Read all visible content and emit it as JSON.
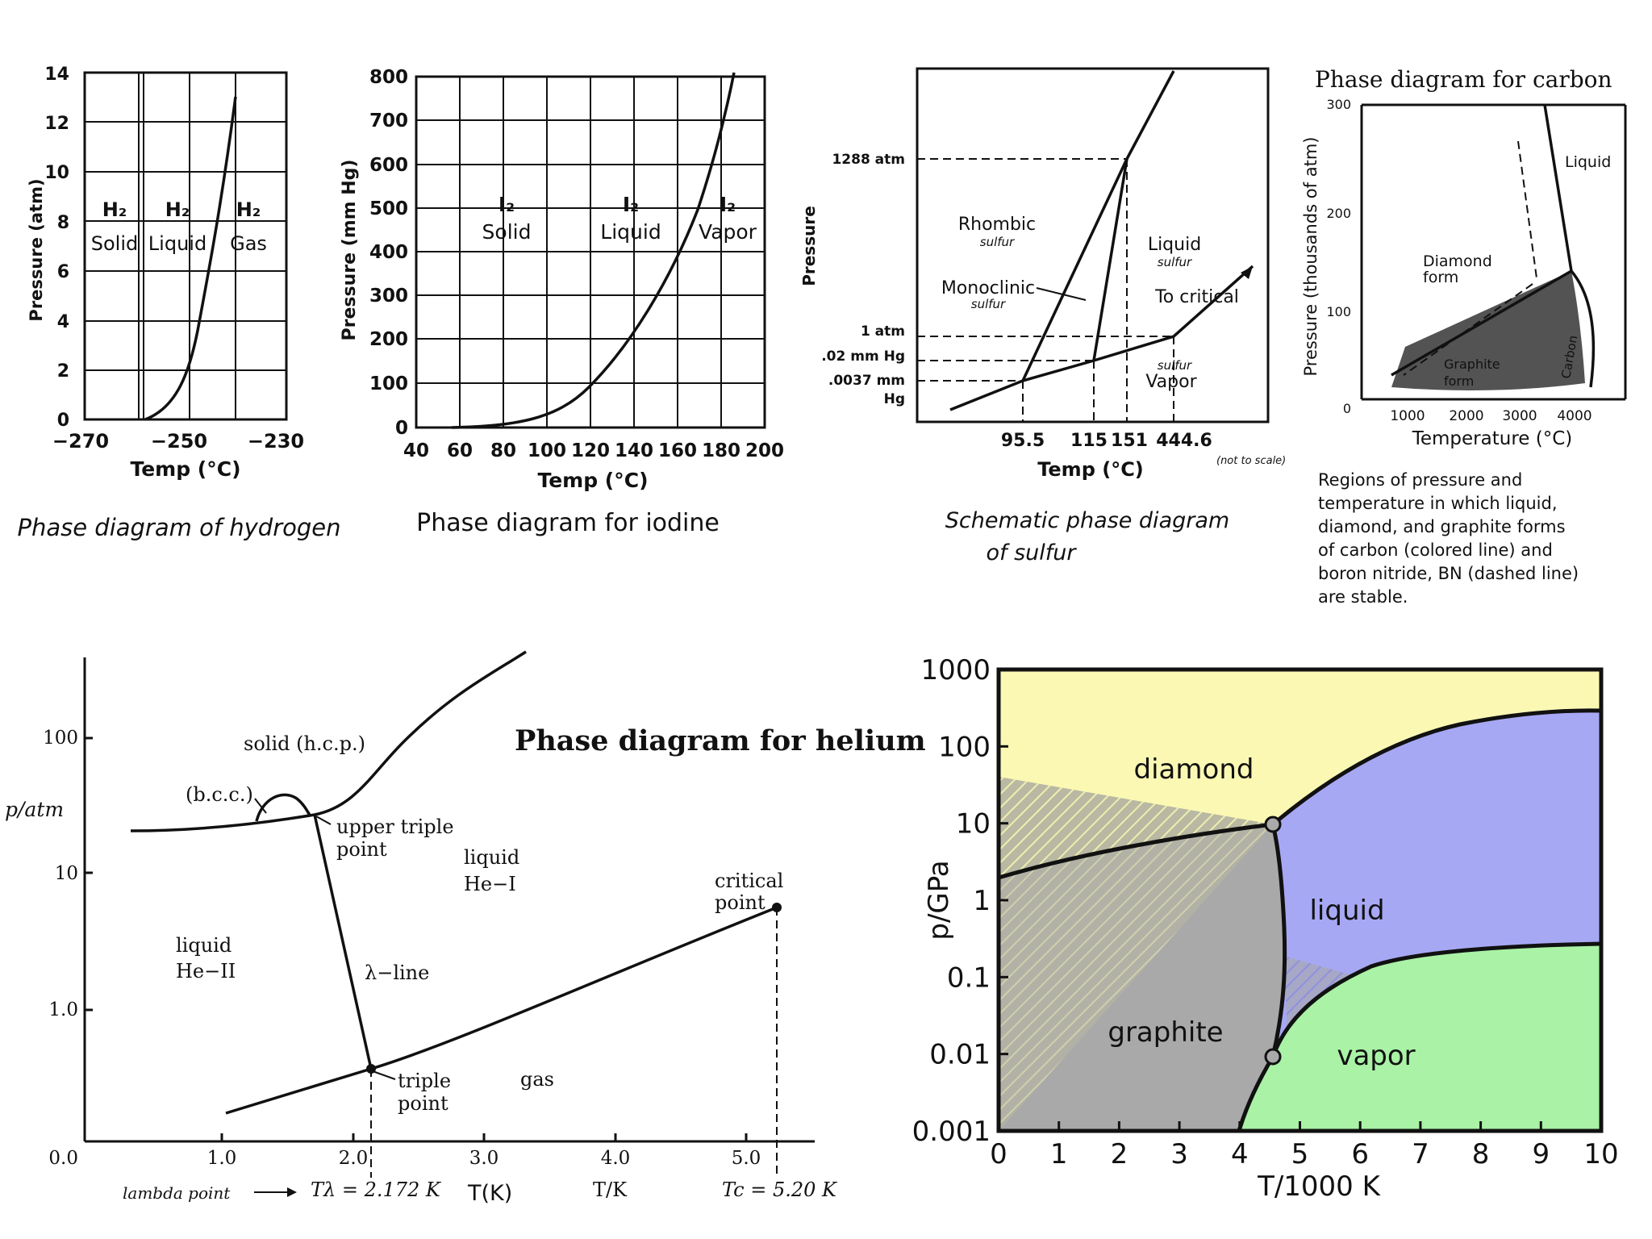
{
  "hydrogen": {
    "caption": "Phase diagram of hydrogen",
    "ylabel": "Pressure (atm)",
    "xlabel": "Temp (°C)",
    "yticks": [
      "0",
      "2",
      "4",
      "6",
      "8",
      "10",
      "12",
      "14"
    ],
    "xticks": [
      "−270",
      "−250",
      "−230"
    ],
    "labels": [
      {
        "id": "solid",
        "formula": "H₂",
        "phase": "Solid"
      },
      {
        "id": "liquid",
        "formula": "H₂",
        "phase": "Liquid"
      },
      {
        "id": "gas",
        "formula": "H₂",
        "phase": "Gas"
      }
    ]
  },
  "iodine": {
    "caption": "Phase diagram for iodine",
    "ylabel": "Pressure (mm Hg)",
    "xlabel": "Temp (°C)",
    "yticks": [
      "0",
      "100",
      "200",
      "300",
      "400",
      "500",
      "600",
      "700",
      "800"
    ],
    "xticks": [
      "40",
      "60",
      "80",
      "100",
      "120",
      "140",
      "160",
      "180",
      "200"
    ],
    "labels": [
      {
        "id": "solid",
        "formula": "I₂",
        "phase": "Solid"
      },
      {
        "id": "liquid",
        "formula": "I₂",
        "phase": "Liquid"
      },
      {
        "id": "vapor",
        "formula": "I₂",
        "phase": "Vapor"
      }
    ]
  },
  "sulfur": {
    "caption_line1": "Schematic phase diagram",
    "caption_line2": "of sulfur",
    "ylabel": "Pressure",
    "xlabel": "Temp (°C)",
    "not_to_scale": "(not to scale)",
    "pressure_marks": [
      "1288 atm",
      "1 atm",
      ".02 mm Hg",
      ".0037 mm",
      "Hg"
    ],
    "temp_marks": [
      "95.5",
      "115",
      "151",
      "444.6"
    ],
    "regions": {
      "rhombic": [
        "Rhombic",
        "sulfur"
      ],
      "monoclinic": [
        "Monoclinic",
        "sulfur"
      ],
      "liquid": [
        "Liquid",
        "sulfur"
      ],
      "to_critical": "To critical",
      "vapor": [
        "sulfur",
        "Vapor"
      ]
    }
  },
  "carbon": {
    "title": "Phase diagram for carbon",
    "ylabel": "Pressure (thousands of atm)",
    "xlabel": "Temperature (°C)",
    "yticks": [
      "0",
      "100",
      "200",
      "300"
    ],
    "xticks": [
      "1000",
      "2000",
      "3000",
      "4000"
    ],
    "regions": {
      "liquid": "Liquid",
      "diamond": [
        "Diamond",
        "form"
      ],
      "graphite": [
        "Graphite",
        "form"
      ],
      "carbon": "Carbon"
    },
    "description": [
      "Regions of pressure and",
      "temperature in which liquid,",
      "diamond, and graphite forms",
      "of carbon (colored line) and",
      "boron nitride, BN (dashed line)",
      "are stable."
    ]
  },
  "helium": {
    "title": "Phase diagram for helium",
    "ylabel": "p/atm",
    "yticks": [
      "0.0",
      "1.0",
      "10",
      "100"
    ],
    "xticks": [
      "1.0",
      "2.0",
      "3.0",
      "4.0",
      "5.0"
    ],
    "labels": {
      "solid": "solid (h.c.p.)",
      "bcc": "(b.c.c.)",
      "upper_triple": [
        "upper triple",
        "point"
      ],
      "liquid_he1": [
        "liquid",
        "He−I"
      ],
      "liquid_he2": [
        "liquid",
        "He−II"
      ],
      "lambda_line": "λ−line",
      "critical": [
        "critical",
        "point"
      ],
      "triple": [
        "triple",
        "point"
      ],
      "gas": "gas"
    },
    "bottom": {
      "lambda_point": "lambda point",
      "t_lambda": "Tλ = 2.172 K",
      "t_k_hand": "T(K)",
      "t_over_k": "T/K",
      "t_c": "Tc = 5.20 K"
    }
  },
  "chart_data": {
    "type": "area",
    "xlabel": "T/1000 K",
    "ylabel": "p/GPa",
    "xlim": [
      0,
      10
    ],
    "ylim": [
      0.001,
      1000
    ],
    "log_y": true,
    "xticks": [
      "0",
      "1",
      "2",
      "3",
      "4",
      "5",
      "6",
      "7",
      "8",
      "9",
      "10"
    ],
    "yticks": [
      "0.001",
      "0.01",
      "0.1",
      "1",
      "10",
      "100",
      "1000"
    ],
    "regions": [
      {
        "name": "diamond",
        "color": "#fbf8b4"
      },
      {
        "name": "liquid",
        "color": "#a7a8f4"
      },
      {
        "name": "graphite",
        "color": "#a9a9a9"
      },
      {
        "name": "vapor",
        "color": "#a9f2a6"
      }
    ],
    "boundaries": {
      "graphite_diamond": [
        [
          0,
          2
        ],
        [
          1.5,
          3.5
        ],
        [
          3,
          6
        ],
        [
          4.5,
          10
        ]
      ],
      "diamond_liquid": [
        [
          4.5,
          10
        ],
        [
          5.5,
          30
        ],
        [
          7,
          80
        ],
        [
          8.5,
          160
        ],
        [
          10,
          300
        ]
      ],
      "graphite_liquid": [
        [
          4.5,
          10
        ],
        [
          4.62,
          2
        ],
        [
          4.72,
          0.3
        ],
        [
          4.7,
          0.05
        ],
        [
          4.5,
          0.01
        ]
      ],
      "liquid_vapor": [
        [
          4.5,
          0.01
        ],
        [
          5,
          0.05
        ],
        [
          6,
          0.15
        ],
        [
          8,
          0.25
        ],
        [
          10,
          0.3
        ]
      ],
      "graphite_vapor": [
        [
          4.5,
          0.01
        ],
        [
          4.25,
          0.003
        ],
        [
          4,
          0.001
        ]
      ]
    },
    "triple_points": [
      [
        4.5,
        10
      ],
      [
        4.5,
        0.01
      ]
    ]
  }
}
